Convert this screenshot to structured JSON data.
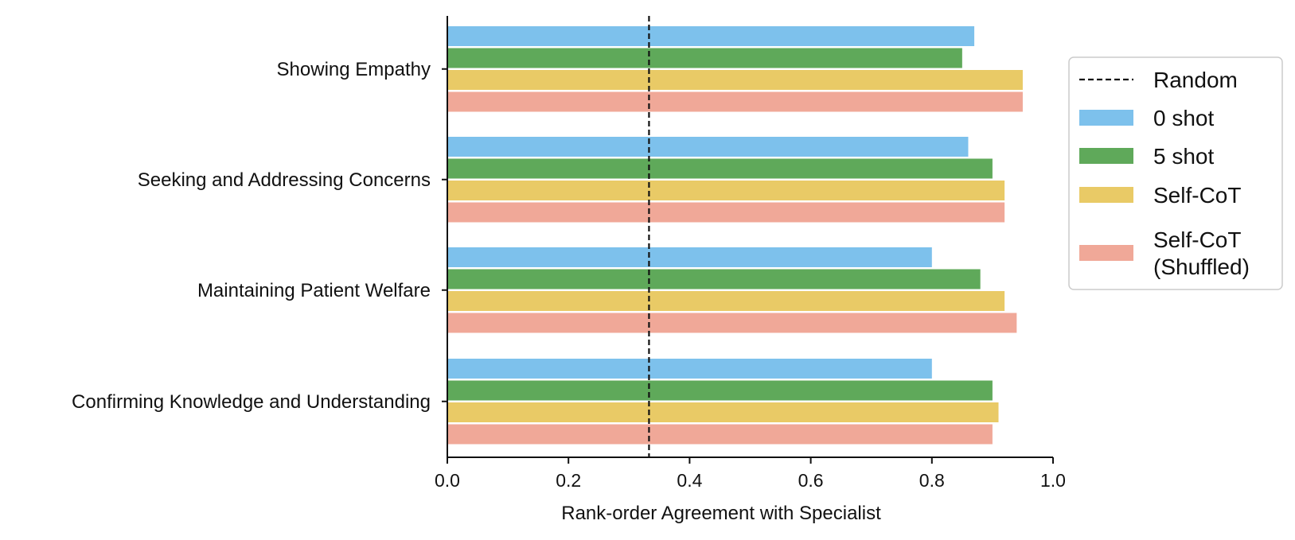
{
  "chart_data": {
    "type": "bar",
    "orientation": "horizontal",
    "categories": [
      "Showing Empathy",
      "Seeking and Addressing Concerns",
      "Maintaining Patient Welfare",
      "Confirming Knowledge and Understanding"
    ],
    "series": [
      {
        "name": "0 shot",
        "color": "#7dc1ec",
        "values": [
          0.87,
          0.86,
          0.8,
          0.8
        ]
      },
      {
        "name": "5 shot",
        "color": "#5fa95a",
        "values": [
          0.85,
          0.9,
          0.88,
          0.9
        ]
      },
      {
        "name": "Self-CoT",
        "color": "#e9ca66",
        "values": [
          0.95,
          0.92,
          0.92,
          0.91
        ]
      },
      {
        "name": "Self-CoT (Shuffled)",
        "color": "#f0a898",
        "values": [
          0.95,
          0.92,
          0.94,
          0.9
        ]
      }
    ],
    "reference_line": {
      "name": "Random",
      "value": 0.333,
      "style": "dashed",
      "color": "#111111"
    },
    "xlabel": "Rank-order Agreement with Specialist",
    "ylabel": "",
    "xlim": [
      0.0,
      1.0
    ],
    "xticks": [
      "0.0",
      "0.2",
      "0.4",
      "0.6",
      "0.8",
      "1.0"
    ],
    "legend": {
      "placement": "right",
      "items": [
        {
          "label_lines": [
            "Random"
          ],
          "kind": "line"
        },
        {
          "label_lines": [
            "0 shot"
          ],
          "kind": "bar"
        },
        {
          "label_lines": [
            "5 shot"
          ],
          "kind": "bar"
        },
        {
          "label_lines": [
            "Self-CoT"
          ],
          "kind": "bar"
        },
        {
          "label_lines": [
            "Self-CoT",
            "(Shuffled)"
          ],
          "kind": "bar"
        }
      ]
    },
    "grid": false
  }
}
